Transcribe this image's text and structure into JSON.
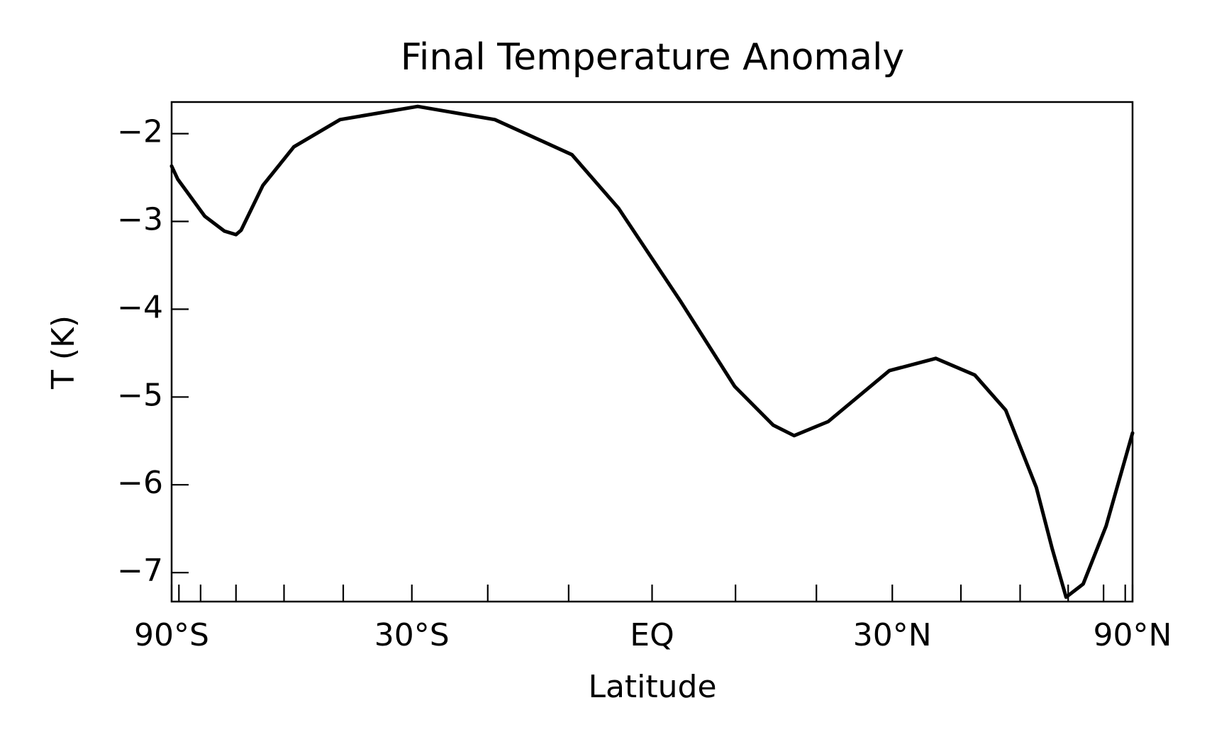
{
  "chart_data": {
    "type": "line",
    "title": "Final Temperature Anomaly",
    "x_label": "Latitude",
    "y_label": "T (K)",
    "x_scale": "sine",
    "tick_direction": "in",
    "x": [
      -90,
      -80.8,
      -68.6,
      -62.9,
      -60,
      -58.8,
      -54.1,
      -48.2,
      -40.5,
      -29.2,
      -19.1,
      -9.6,
      -4.0,
      3.4,
      9.9,
      14.6,
      17.2,
      21.5,
      29.6,
      36.2,
      42.2,
      47.4,
      53.1,
      56.4,
      59.5,
      63.8,
      70.9,
      90
    ],
    "series": [
      {
        "name": "T",
        "color": "#000000",
        "values": [
          -2.37,
          -2.52,
          -2.94,
          -3.11,
          -3.15,
          -3.1,
          -2.59,
          -2.15,
          -1.84,
          -1.69,
          -1.84,
          -2.24,
          -2.85,
          -3.91,
          -4.88,
          -5.32,
          -5.44,
          -5.28,
          -4.7,
          -4.56,
          -4.75,
          -5.15,
          -6.03,
          -6.73,
          -7.28,
          -7.13,
          -6.47,
          -5.41
        ]
      }
    ],
    "xlim": [
      -90,
      90
    ],
    "xticks": [
      {
        "value": -90,
        "label": "90°S"
      },
      {
        "value": -30,
        "label": "30°S"
      },
      {
        "value": 0,
        "label": "EQ"
      },
      {
        "value": 30,
        "label": "30°N"
      },
      {
        "value": 90,
        "label": "90°N"
      }
    ],
    "xminorticks": [
      -80,
      -70,
      -60,
      -50,
      -40,
      -20,
      -10,
      10,
      20,
      40,
      50,
      60,
      70,
      80
    ],
    "ylim": [
      -7.33,
      -1.64
    ],
    "yticks": [
      {
        "value": -7,
        "label": "−7"
      },
      {
        "value": -6,
        "label": "−6"
      },
      {
        "value": -5,
        "label": "−5"
      },
      {
        "value": -4,
        "label": "−4"
      },
      {
        "value": -3,
        "label": "−3"
      },
      {
        "value": -2,
        "label": "−2"
      }
    ]
  }
}
